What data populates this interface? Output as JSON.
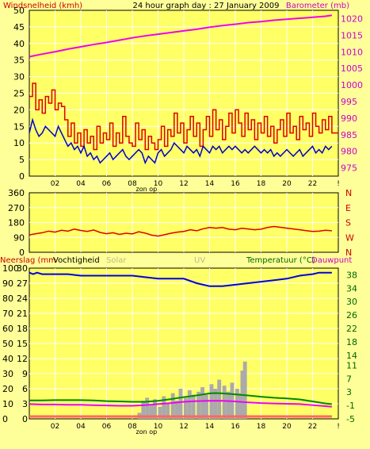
{
  "colors": {
    "background": "#ffff99",
    "plot_bg": "#ffff66",
    "grid": "#ffffff",
    "wind": "#dd0000",
    "wind_avg": "#0000cc",
    "barometer": "#ee00ee",
    "direction": "#dd0000",
    "humidity": "#0000dd",
    "temperature": "#008800",
    "dewpoint": "#ee00ee",
    "solar": "#aaaaaa",
    "rain": "#ff6666",
    "label_red": "#cc0000",
    "label_magenta": "#cc00cc",
    "label_green": "#006600",
    "label_grey": "#bbbb88"
  },
  "chart_data": [
    {
      "type": "line",
      "title": "24 hour graph day : 27 January 2009",
      "ylabel": "Windsnelheid (kmh)",
      "y2label": "Barometer (mb)",
      "ylim": [
        0,
        50
      ],
      "y2lim": [
        972.5,
        1022.5
      ],
      "yticks": [
        0,
        5,
        10,
        15,
        20,
        25,
        30,
        35,
        40,
        45,
        50
      ],
      "y2ticks": [
        975,
        980,
        985,
        990,
        995,
        1000,
        1005,
        1010,
        1015,
        1020
      ],
      "xlim": [
        0,
        24
      ],
      "xticks": [
        "02",
        "04",
        "06",
        "08",
        "10",
        "12",
        "14",
        "16",
        "18",
        "20",
        "22"
      ],
      "annotation": "zon op",
      "grid": true,
      "series": [
        {
          "name": "Windsnelheid (kmh)",
          "axis": "left",
          "x": [
            0,
            0.25,
            0.5,
            0.75,
            1,
            1.25,
            1.5,
            1.75,
            2,
            2.25,
            2.5,
            2.75,
            3,
            3.25,
            3.5,
            3.75,
            4,
            4.25,
            4.5,
            4.75,
            5,
            5.25,
            5.5,
            5.75,
            6,
            6.25,
            6.5,
            6.75,
            7,
            7.25,
            7.5,
            7.75,
            8,
            8.25,
            8.5,
            8.75,
            9,
            9.25,
            9.5,
            9.75,
            10,
            10.25,
            10.5,
            10.75,
            11,
            11.25,
            11.5,
            11.75,
            12,
            12.25,
            12.5,
            12.75,
            13,
            13.25,
            13.5,
            13.75,
            14,
            14.25,
            14.5,
            14.75,
            15,
            15.25,
            15.5,
            15.75,
            16,
            16.25,
            16.5,
            16.75,
            17,
            17.25,
            17.5,
            17.75,
            18,
            18.25,
            18.5,
            18.75,
            19,
            19.25,
            19.5,
            19.75,
            20,
            20.25,
            20.5,
            20.75,
            21,
            21.25,
            21.5,
            21.75,
            22,
            22.25,
            22.5,
            22.75,
            23,
            23.25,
            23.5
          ],
          "values": [
            24,
            28,
            20,
            23,
            19,
            24,
            22,
            26,
            20,
            22,
            21,
            17,
            12,
            16,
            10,
            13,
            9,
            14,
            10,
            12,
            8,
            15,
            10,
            13,
            11,
            16,
            9,
            13,
            10,
            18,
            12,
            10,
            9,
            16,
            11,
            14,
            8,
            12,
            10,
            8,
            11,
            15,
            9,
            14,
            12,
            19,
            13,
            16,
            10,
            14,
            18,
            12,
            16,
            9,
            14,
            18,
            12,
            20,
            14,
            17,
            11,
            15,
            19,
            13,
            20,
            16,
            12,
            19,
            14,
            17,
            11,
            16,
            13,
            18,
            12,
            15,
            10,
            14,
            17,
            12,
            19,
            13,
            15,
            11,
            18,
            14,
            16,
            12,
            19,
            15,
            13,
            17,
            14,
            18,
            13
          ]
        },
        {
          "name": "Windsnelheid gemiddeld",
          "axis": "left",
          "x": [
            0,
            0.25,
            0.5,
            0.75,
            1,
            1.25,
            1.5,
            1.75,
            2,
            2.25,
            2.5,
            2.75,
            3,
            3.25,
            3.5,
            3.75,
            4,
            4.25,
            4.5,
            4.75,
            5,
            5.25,
            5.5,
            5.75,
            6,
            6.25,
            6.5,
            6.75,
            7,
            7.25,
            7.5,
            7.75,
            8,
            8.25,
            8.5,
            8.75,
            9,
            9.25,
            9.5,
            9.75,
            10,
            10.25,
            10.5,
            10.75,
            11,
            11.25,
            11.5,
            11.75,
            12,
            12.25,
            12.5,
            12.75,
            13,
            13.25,
            13.5,
            13.75,
            14,
            14.25,
            14.5,
            14.75,
            15,
            15.25,
            15.5,
            15.75,
            16,
            16.25,
            16.5,
            16.75,
            17,
            17.25,
            17.5,
            17.75,
            18,
            18.25,
            18.5,
            18.75,
            19,
            19.25,
            19.5,
            19.75,
            20,
            20.25,
            20.5,
            20.75,
            21,
            21.25,
            21.5,
            21.75,
            22,
            22.25,
            22.5,
            22.75,
            23,
            23.25,
            23.5
          ],
          "values": [
            13,
            17,
            14,
            12,
            13,
            15,
            14,
            13,
            12,
            15,
            13,
            11,
            9,
            10,
            8,
            9,
            7,
            9,
            6,
            7,
            5,
            6,
            4,
            5,
            6,
            7,
            5,
            6,
            7,
            8,
            6,
            5,
            6,
            7,
            8,
            7,
            4,
            6,
            5,
            4,
            7,
            8,
            6,
            7,
            8,
            10,
            9,
            8,
            7,
            9,
            8,
            7,
            8,
            6,
            9,
            8,
            7,
            9,
            8,
            9,
            7,
            8,
            9,
            8,
            9,
            8,
            7,
            8,
            7,
            8,
            9,
            8,
            7,
            8,
            7,
            8,
            6,
            7,
            6,
            7,
            8,
            7,
            6,
            7,
            8,
            6,
            7,
            8,
            9,
            7,
            8,
            7,
            9,
            8,
            9
          ]
        },
        {
          "name": "Barometer (mb)",
          "axis": "right",
          "x": [
            0,
            1,
            2,
            3,
            4,
            5,
            6,
            7,
            8,
            9,
            10,
            11,
            12,
            13,
            14,
            15,
            16,
            17,
            18,
            19,
            20,
            21,
            22,
            23,
            23.5
          ],
          "values": [
            1008.5,
            1009.3,
            1010,
            1010.8,
            1011.5,
            1012.2,
            1012.8,
            1013.5,
            1014.2,
            1014.8,
            1015.3,
            1015.8,
            1016.3,
            1016.8,
            1017.4,
            1017.9,
            1018.3,
            1018.8,
            1019.1,
            1019.5,
            1019.8,
            1020.1,
            1020.4,
            1020.7,
            1021
          ]
        }
      ]
    },
    {
      "type": "line",
      "yticks": [
        0,
        90,
        180,
        270,
        360
      ],
      "ylim": [
        0,
        360
      ],
      "y2ticks": [
        "N",
        "W",
        "S",
        "E",
        "N"
      ],
      "xlim": [
        0,
        24
      ],
      "grid": true,
      "series": [
        {
          "name": "Windrichting",
          "x": [
            0,
            0.5,
            1,
            1.5,
            2,
            2.5,
            3,
            3.5,
            4,
            4.5,
            5,
            5.5,
            6,
            6.5,
            7,
            7.5,
            8,
            8.5,
            9,
            9.5,
            10,
            10.5,
            11,
            11.5,
            12,
            12.5,
            13,
            13.5,
            14,
            14.5,
            15,
            15.5,
            16,
            16.5,
            17,
            17.5,
            18,
            18.5,
            19,
            19.5,
            20,
            20.5,
            21,
            21.5,
            22,
            22.5,
            23,
            23.5
          ],
          "values": [
            105,
            112,
            118,
            128,
            122,
            133,
            128,
            140,
            132,
            126,
            135,
            120,
            112,
            118,
            108,
            115,
            111,
            124,
            116,
            104,
            98,
            106,
            115,
            122,
            126,
            136,
            130,
            142,
            150,
            146,
            150,
            140,
            136,
            145,
            141,
            136,
            140,
            150,
            156,
            151,
            146,
            141,
            136,
            131,
            126,
            128,
            133,
            130
          ]
        }
      ]
    },
    {
      "type": "line",
      "ylabel": "Neerslag (mm)",
      "labels": [
        "Neerslag (mm",
        "Vochtigheid",
        "Solar",
        "UV",
        "Temperatuur (°C)",
        "Dauwpunt"
      ],
      "yticks": [
        0,
        10,
        20,
        30,
        40,
        50,
        60,
        70,
        80,
        90,
        100
      ],
      "yticks_mid": [
        0,
        3,
        6,
        9,
        12,
        15,
        18,
        21,
        24,
        27,
        30
      ],
      "y2ticks": [
        -5,
        -1,
        3,
        7,
        11,
        14,
        18,
        22,
        26,
        30,
        34,
        38
      ],
      "ylim": [
        0,
        100
      ],
      "y2lim": [
        -5,
        40
      ],
      "xlim": [
        0,
        24
      ],
      "xticks": [
        "02",
        "04",
        "06",
        "08",
        "10",
        "12",
        "14",
        "16",
        "18",
        "20",
        "22"
      ],
      "annotation": "zon op",
      "grid": true,
      "series": [
        {
          "name": "Vochtigheid",
          "axis": "left",
          "x": [
            0,
            0.3,
            0.6,
            1,
            2,
            3,
            4,
            5,
            6,
            7,
            8,
            9,
            10,
            11,
            12,
            13,
            13.5,
            14,
            14.5,
            15,
            16,
            17,
            18,
            19,
            20,
            21,
            22,
            22.5,
            23,
            23.5
          ],
          "values": [
            97,
            96,
            97,
            96,
            96,
            96,
            95,
            95,
            95,
            95,
            95,
            94,
            93,
            93,
            93,
            90,
            89,
            88,
            88,
            88,
            89,
            90,
            91,
            92,
            93,
            95,
            96,
            97,
            97,
            97
          ]
        },
        {
          "name": "Temperatuur (°C)",
          "axis": "right",
          "x": [
            0,
            1,
            2,
            3,
            4,
            5,
            6,
            7,
            8,
            9,
            10,
            11,
            12,
            13,
            14,
            14.5,
            15,
            16,
            17,
            18,
            19,
            20,
            21,
            22,
            23,
            23.5
          ],
          "values": [
            0.5,
            0.5,
            0.6,
            0.6,
            0.6,
            0.5,
            0.3,
            0.2,
            0.1,
            0.1,
            0.4,
            0.9,
            1.5,
            2,
            2.6,
            2.7,
            2.6,
            2.3,
            2.0,
            1.6,
            1.3,
            1.1,
            0.8,
            0.2,
            -0.4,
            -0.6
          ]
        },
        {
          "name": "Dauwpunt",
          "axis": "right",
          "x": [
            0,
            1,
            2,
            3,
            4,
            5,
            6,
            7,
            8,
            9,
            10,
            11,
            12,
            13,
            14,
            15,
            16,
            17,
            18,
            19,
            20,
            21,
            22,
            23,
            23.5
          ],
          "values": [
            -0.6,
            -0.7,
            -0.7,
            -0.8,
            -0.8,
            -0.9,
            -1.0,
            -1.1,
            -1.1,
            -0.9,
            -0.6,
            -0.3,
            0.1,
            0.3,
            0.4,
            0.4,
            0.2,
            -0.1,
            -0.3,
            -0.4,
            -0.5,
            -0.6,
            -0.9,
            -1.2,
            -1.4
          ]
        },
        {
          "name": "Solar",
          "axis": "left",
          "x": [
            8.4,
            8.7,
            9,
            9.3,
            9.6,
            10,
            10.3,
            10.6,
            11,
            11.3,
            11.6,
            12,
            12.3,
            12.6,
            13,
            13.3,
            13.6,
            14,
            14.3,
            14.6,
            15,
            15.3,
            15.6,
            16,
            16.2,
            16.4,
            16.6,
            16.8
          ],
          "values": [
            4,
            12,
            14,
            9,
            13,
            8,
            15,
            10,
            17,
            12,
            20,
            14,
            19,
            16,
            18,
            21,
            16,
            23,
            20,
            26,
            22,
            18,
            24,
            20,
            17,
            32,
            38,
            0
          ]
        },
        {
          "name": "Neerslag (mm)",
          "axis": "left",
          "x": [
            0,
            23.5
          ],
          "values": [
            0,
            0
          ]
        }
      ]
    }
  ]
}
